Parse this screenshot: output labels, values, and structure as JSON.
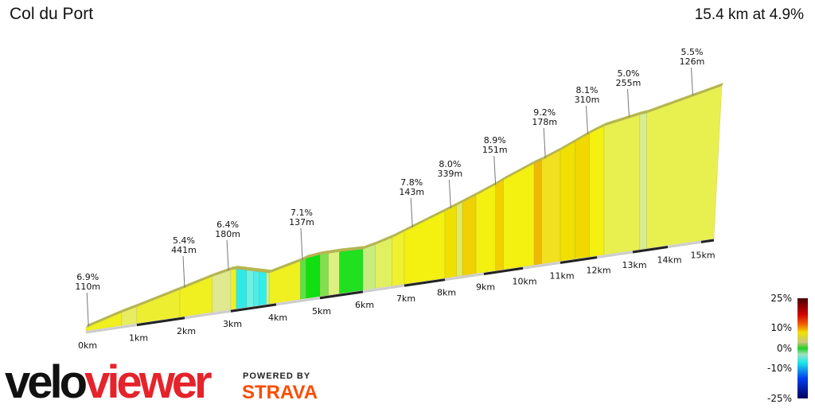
{
  "header": {
    "title": "Col du Port",
    "summary": "15.4 km at 4.9%"
  },
  "chart_data": {
    "type": "area",
    "title": "Col du Port",
    "subtitle": "15.4 km at 4.9%",
    "total_km": 15.4,
    "average_gradient_pct": 4.9,
    "x_ticks": [
      "0km",
      "1km",
      "2km",
      "3km",
      "4km",
      "5km",
      "6km",
      "7km",
      "8km",
      "9km",
      "10km",
      "11km",
      "12km",
      "13km",
      "14km",
      "15km"
    ],
    "annotations": [
      {
        "km": 0.05,
        "gradient": "6.9%",
        "length": "110m"
      },
      {
        "km": 2.0,
        "gradient": "5.4%",
        "length": "441m"
      },
      {
        "km": 2.95,
        "gradient": "6.4%",
        "length": "180m"
      },
      {
        "km": 4.6,
        "gradient": "7.1%",
        "length": "137m"
      },
      {
        "km": 7.2,
        "gradient": "7.8%",
        "length": "143m"
      },
      {
        "km": 8.15,
        "gradient": "8.0%",
        "length": "339m"
      },
      {
        "km": 9.3,
        "gradient": "8.9%",
        "length": "151m"
      },
      {
        "km": 10.6,
        "gradient": "9.2%",
        "length": "178m"
      },
      {
        "km": 11.75,
        "gradient": "8.1%",
        "length": "310m"
      },
      {
        "km": 12.9,
        "gradient": "5.0%",
        "length": "255m"
      },
      {
        "km": 14.75,
        "gradient": "5.5%",
        "length": "126m"
      }
    ],
    "segments": [
      [
        0,
        0.7,
        "#f0f020"
      ],
      [
        0.7,
        1.0,
        "#e8ec60"
      ],
      [
        1.0,
        1.9,
        "#eeee30"
      ],
      [
        1.9,
        2.6,
        "#f0f020"
      ],
      [
        2.6,
        3.0,
        "#e0e890"
      ],
      [
        3.0,
        3.12,
        "#f0f020"
      ],
      [
        3.12,
        3.35,
        "#30e8e8"
      ],
      [
        3.35,
        3.5,
        "#70f0e0"
      ],
      [
        3.5,
        3.62,
        "#50ece8"
      ],
      [
        3.62,
        3.78,
        "#30eeee"
      ],
      [
        3.78,
        3.85,
        "#c0f0a0"
      ],
      [
        3.85,
        4.55,
        "#f0f020"
      ],
      [
        4.55,
        4.68,
        "#60e040"
      ],
      [
        4.68,
        5.0,
        "#10e010"
      ],
      [
        5.0,
        5.2,
        "#80e050"
      ],
      [
        5.2,
        5.45,
        "#e0f080"
      ],
      [
        5.45,
        6.0,
        "#20e020"
      ],
      [
        6.0,
        6.3,
        "#c8ec80"
      ],
      [
        6.3,
        6.7,
        "#e0f060"
      ],
      [
        6.7,
        7.0,
        "#eef030"
      ],
      [
        7.0,
        8.0,
        "#f4f010"
      ],
      [
        8.0,
        8.3,
        "#f0e000"
      ],
      [
        8.3,
        8.45,
        "#e0ec60"
      ],
      [
        8.45,
        8.8,
        "#f0d000"
      ],
      [
        8.8,
        9.3,
        "#f4f010"
      ],
      [
        9.3,
        9.5,
        "#f0d000"
      ],
      [
        9.5,
        10.3,
        "#f4f010"
      ],
      [
        10.3,
        10.5,
        "#f0b800"
      ],
      [
        10.5,
        11.0,
        "#f0e020"
      ],
      [
        11.0,
        11.4,
        "#f0e000"
      ],
      [
        11.4,
        11.8,
        "#f0d800"
      ],
      [
        11.8,
        12.2,
        "#f4f010"
      ],
      [
        12.2,
        13.2,
        "#e8f050"
      ],
      [
        13.2,
        13.4,
        "#d8ec90"
      ],
      [
        13.4,
        15.4,
        "#e8f050"
      ]
    ],
    "legend": {
      "type": "colorbar",
      "labels": [
        "25%",
        "10%",
        "0%",
        "-10%",
        "-25%"
      ],
      "range": [
        -25,
        25
      ],
      "stops": [
        [
          25,
          "#4a0000"
        ],
        [
          17,
          "#d00000"
        ],
        [
          12,
          "#f06000"
        ],
        [
          8,
          "#f0e000"
        ],
        [
          3,
          "#c8c880"
        ],
        [
          0,
          "#20d020"
        ],
        [
          -3,
          "#a0e0c0"
        ],
        [
          -7,
          "#20e8e8"
        ],
        [
          -15,
          "#0040f0"
        ],
        [
          -25,
          "#000060"
        ]
      ]
    }
  },
  "branding": {
    "velo": "velo",
    "viewer": "viewer",
    "powered_by": "POWERED BY",
    "strava": "STRAVA",
    "viewer_color": "#e5232b",
    "strava_color": "#fc4c02"
  }
}
